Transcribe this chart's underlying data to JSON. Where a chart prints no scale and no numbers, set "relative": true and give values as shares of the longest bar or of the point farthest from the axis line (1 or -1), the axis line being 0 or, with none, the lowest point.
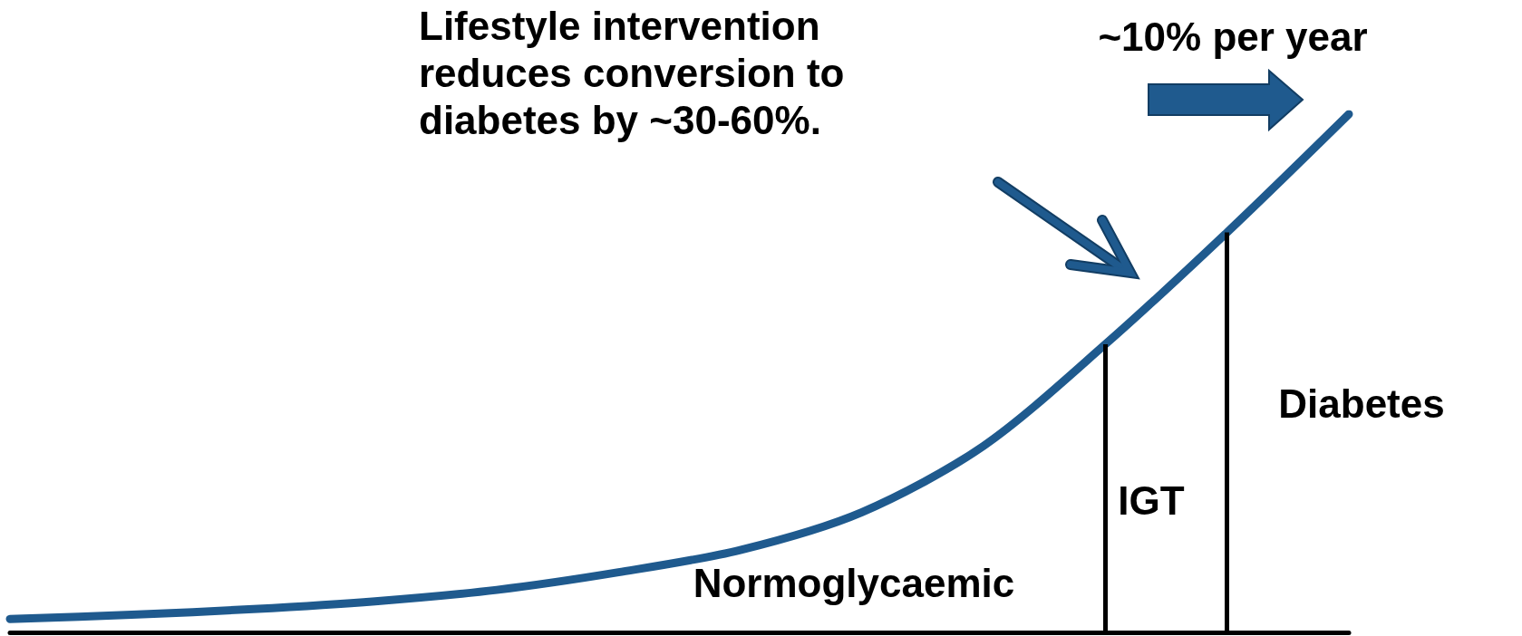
{
  "chart_data": {
    "type": "line",
    "relative": true,
    "tick_labels": false,
    "line_style": "solid",
    "categories": [
      null,
      null,
      null,
      null,
      null,
      null,
      null,
      null,
      null,
      null,
      null,
      null
    ],
    "series": [
      {
        "color": "#1f5a8e",
        "values": [
          0.026,
          0.034,
          0.045,
          0.06,
          0.082,
          0.116,
          0.159,
          0.232,
          0.36,
          0.556,
          0.772,
          1
        ]
      }
    ],
    "annotations": [
      "Lifestyle intervention reduces conversion to diabetes by ~30-60%.",
      "~10% per year",
      "Normoglycaemic",
      "IGT",
      "Diabetes"
    ]
  }
}
